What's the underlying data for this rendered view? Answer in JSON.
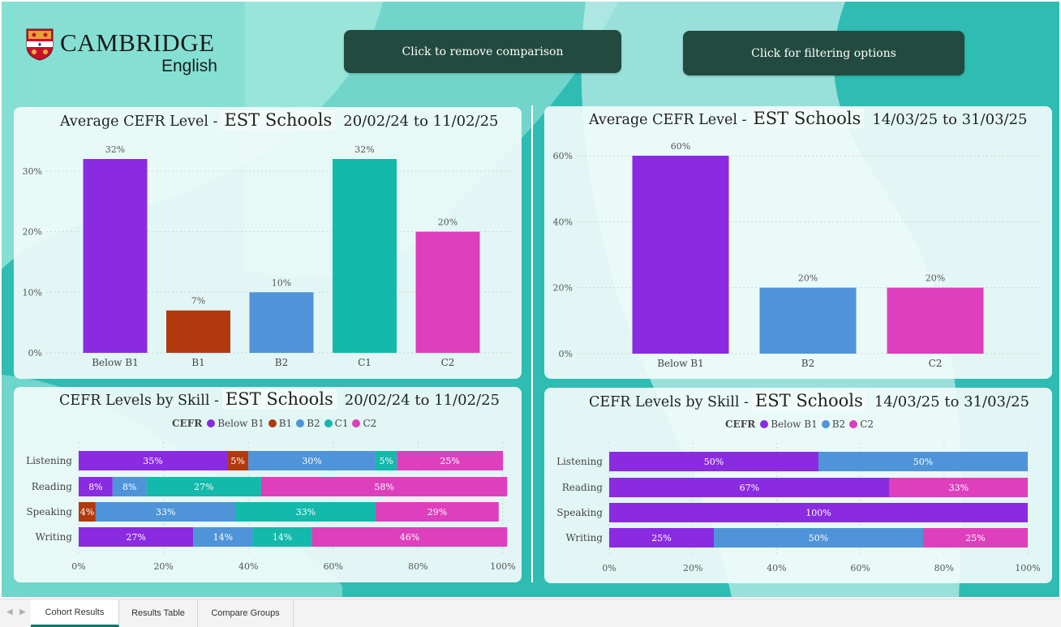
{
  "header": {
    "logo_word": "CAMBRIDGE",
    "logo_sub": "English",
    "btn_remove_label": "Click to remove comparison",
    "btn_filter_label": "Click for filtering options"
  },
  "colors": {
    "background": "#2ebcb3",
    "button": "#224a3f",
    "Below B1": "#8a2be2",
    "B1": "#b03a0e",
    "B2": "#4f94d8",
    "C1": "#13b9aa",
    "C2": "#dd3fbd"
  },
  "panels": {
    "p1": {
      "title": "Average CEFR Level -",
      "group": "EST Schools",
      "dates": "20/02/24 to 11/02/25"
    },
    "p2": {
      "title": "Average CEFR Level -",
      "group": "EST Schools",
      "dates": "14/03/25 to 31/03/25"
    },
    "p3": {
      "title": "CEFR Levels by Skill -",
      "group": "EST Schools",
      "dates": "20/02/24 to 11/02/25",
      "legend_title": "CEFR"
    },
    "p4": {
      "title": "CEFR Levels by Skill -",
      "group": "EST Schools",
      "dates": "14/03/25 to 31/03/25",
      "legend_title": "CEFR"
    }
  },
  "chart_data": [
    {
      "type": "bar",
      "categories": [
        "Below B1",
        "B1",
        "B2",
        "C1",
        "C2"
      ],
      "values": [
        32,
        7,
        10,
        32,
        20
      ],
      "ylim": [
        0,
        32
      ],
      "yticks": [
        0,
        10,
        20,
        30
      ],
      "unit": "%"
    },
    {
      "type": "bar",
      "categories": [
        "Below B1",
        "B2",
        "C2"
      ],
      "values": [
        60,
        20,
        20
      ],
      "ylim": [
        0,
        60
      ],
      "yticks": [
        0,
        20,
        40,
        60
      ],
      "unit": "%"
    },
    {
      "type": "bar",
      "orientation": "horizontal",
      "stacked": true,
      "categories": [
        "Listening",
        "Reading",
        "Speaking",
        "Writing"
      ],
      "series": [
        {
          "name": "Below B1",
          "values": [
            35,
            8,
            0,
            27
          ]
        },
        {
          "name": "B1",
          "values": [
            5,
            0,
            4,
            0
          ]
        },
        {
          "name": "B2",
          "values": [
            30,
            8,
            33,
            14
          ]
        },
        {
          "name": "C1",
          "values": [
            5,
            27,
            33,
            14
          ]
        },
        {
          "name": "C2",
          "values": [
            25,
            58,
            29,
            46
          ]
        }
      ],
      "xlim": [
        0,
        100
      ],
      "xticks": [
        "0%",
        "20%",
        "40%",
        "60%",
        "80%",
        "100%"
      ],
      "legend_position": "top-center"
    },
    {
      "type": "bar",
      "orientation": "horizontal",
      "stacked": true,
      "categories": [
        "Listening",
        "Reading",
        "Speaking",
        "Writing"
      ],
      "series": [
        {
          "name": "Below B1",
          "values": [
            50,
            67,
            100,
            25
          ]
        },
        {
          "name": "B2",
          "values": [
            50,
            0,
            0,
            50
          ]
        },
        {
          "name": "C2",
          "values": [
            0,
            33,
            0,
            25
          ]
        }
      ],
      "xlim": [
        0,
        100
      ],
      "xticks": [
        "0%",
        "20%",
        "40%",
        "60%",
        "80%",
        "100%"
      ],
      "legend_position": "top-center"
    }
  ],
  "tabs": [
    {
      "label": "Cohort Results",
      "active": true
    },
    {
      "label": "Results Table",
      "active": false
    },
    {
      "label": "Compare Groups",
      "active": false
    }
  ]
}
